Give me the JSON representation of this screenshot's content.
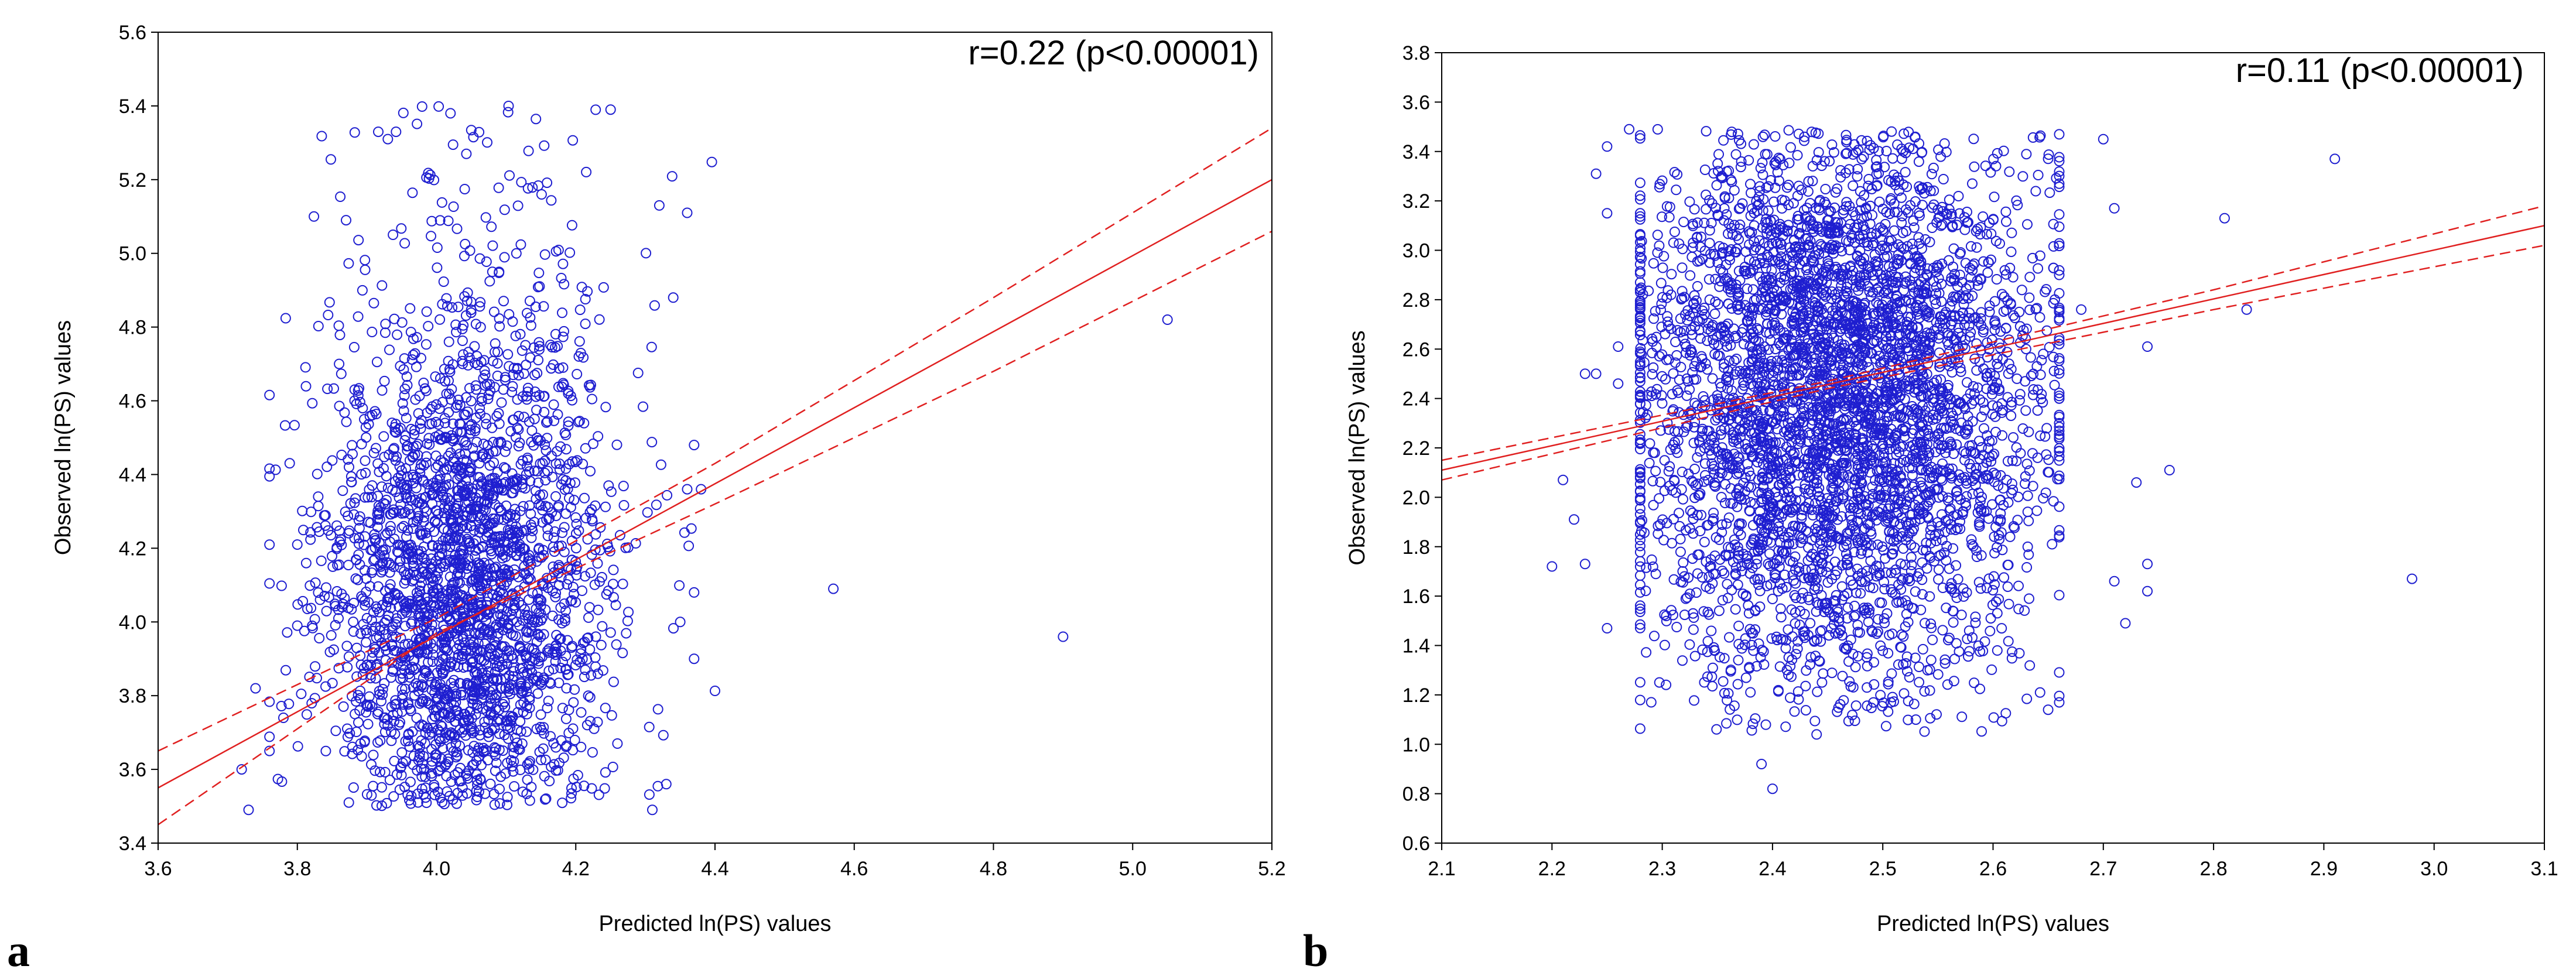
{
  "colors": {
    "points": "#1f1fd0",
    "regression": "#e02020",
    "axis": "#000000"
  },
  "chart_data": [
    {
      "panel": "a",
      "type": "scatter",
      "xlabel": "Predicted ln(PS) values",
      "ylabel": "Observed ln(PS) values",
      "annotation": "r=0.22 (p<0.00001)",
      "xlim": [
        3.6,
        5.2
      ],
      "ylim": [
        3.4,
        5.6
      ],
      "xticks": [
        "3.6",
        "3.8",
        "4.0",
        "4.2",
        "4.4",
        "4.6",
        "4.8",
        "5.0",
        "5.2"
      ],
      "yticks": [
        "3.4",
        "3.6",
        "3.8",
        "4.0",
        "4.2",
        "4.4",
        "4.6",
        "4.8",
        "5.0",
        "5.2",
        "5.4",
        "5.6"
      ],
      "regression": {
        "x": [
          3.6,
          5.2
        ],
        "y": [
          3.55,
          5.2
        ]
      },
      "ci_upper": {
        "x": [
          3.6,
          4.0,
          4.4,
          4.8,
          5.2
        ],
        "y": [
          3.65,
          4.01,
          4.43,
          4.88,
          5.34
        ]
      },
      "ci_lower": {
        "x": [
          3.6,
          4.0,
          4.4,
          4.8,
          5.2
        ],
        "y": [
          3.45,
          3.97,
          4.32,
          4.68,
          5.06
        ]
      },
      "cloud": {
        "n": 2600,
        "x_mean": 4.04,
        "x_sd": 0.1,
        "x_range": [
          3.76,
          4.4
        ],
        "y_mean": 4.05,
        "y_sd": 0.38,
        "y_range": [
          3.5,
          5.4
        ],
        "y_floor": 3.5,
        "seed": 11
      },
      "points": [
        {
          "x": 3.73,
          "y": 3.49
        },
        {
          "x": 3.72,
          "y": 3.6
        },
        {
          "x": 3.76,
          "y": 3.65
        },
        {
          "x": 3.74,
          "y": 3.82
        },
        {
          "x": 3.78,
          "y": 3.74
        },
        {
          "x": 3.8,
          "y": 3.99
        },
        {
          "x": 3.8,
          "y": 4.21
        },
        {
          "x": 3.83,
          "y": 4.34
        },
        {
          "x": 3.86,
          "y": 4.7
        },
        {
          "x": 3.87,
          "y": 5.09
        },
        {
          "x": 3.93,
          "y": 5.31
        },
        {
          "x": 4.02,
          "y": 5.38
        },
        {
          "x": 4.25,
          "y": 5.39
        },
        {
          "x": 4.32,
          "y": 5.13
        },
        {
          "x": 4.36,
          "y": 5.11
        },
        {
          "x": 4.34,
          "y": 4.88
        },
        {
          "x": 4.37,
          "y": 4.48
        },
        {
          "x": 4.36,
          "y": 4.36
        },
        {
          "x": 4.38,
          "y": 4.36
        },
        {
          "x": 4.37,
          "y": 4.08
        },
        {
          "x": 4.35,
          "y": 4.0
        },
        {
          "x": 4.37,
          "y": 3.9
        },
        {
          "x": 4.33,
          "y": 3.56
        },
        {
          "x": 4.31,
          "y": 3.49
        },
        {
          "x": 4.57,
          "y": 4.09
        },
        {
          "x": 4.9,
          "y": 3.96
        },
        {
          "x": 5.05,
          "y": 4.82
        }
      ]
    },
    {
      "panel": "b",
      "type": "scatter",
      "xlabel": "Predicted ln(PS) values",
      "ylabel": "Observed ln(PS) values",
      "annotation": "r=0.11 (p<0.00001)",
      "xlim": [
        2.1,
        3.1
      ],
      "ylim": [
        0.6,
        3.8
      ],
      "xticks": [
        "2.1",
        "2.2",
        "2.3",
        "2.4",
        "2.5",
        "2.6",
        "2.7",
        "2.8",
        "2.9",
        "3.0",
        "3.1"
      ],
      "yticks": [
        "0.6",
        "0.8",
        "1.0",
        "1.2",
        "1.4",
        "1.6",
        "1.8",
        "2.0",
        "2.2",
        "2.4",
        "2.6",
        "2.8",
        "3.0",
        "3.2",
        "3.4",
        "3.6",
        "3.8"
      ],
      "regression": {
        "x": [
          2.1,
          3.1
        ],
        "y": [
          2.11,
          3.1
        ]
      },
      "ci_upper": {
        "x": [
          2.1,
          2.45,
          2.8,
          3.1
        ],
        "y": [
          2.15,
          2.47,
          2.84,
          3.18
        ]
      },
      "ci_lower": {
        "x": [
          2.1,
          2.45,
          2.8,
          3.1
        ],
        "y": [
          2.07,
          2.44,
          2.76,
          3.02
        ]
      },
      "cloud": {
        "n": 4200,
        "x_mean": 2.46,
        "x_sd": 0.09,
        "x_range": [
          2.28,
          2.66
        ],
        "y_mean": 2.4,
        "y_sd": 0.6,
        "y_range": [
          1.05,
          3.49
        ],
        "y_ceiling": 3.49,
        "seed": 23
      },
      "points": [
        {
          "x": 2.2,
          "y": 1.72
        },
        {
          "x": 2.21,
          "y": 2.07
        },
        {
          "x": 2.22,
          "y": 1.91
        },
        {
          "x": 2.23,
          "y": 1.73
        },
        {
          "x": 2.23,
          "y": 2.5
        },
        {
          "x": 2.24,
          "y": 2.5
        },
        {
          "x": 2.25,
          "y": 1.47
        },
        {
          "x": 2.24,
          "y": 3.31
        },
        {
          "x": 2.25,
          "y": 3.42
        },
        {
          "x": 2.27,
          "y": 3.49
        },
        {
          "x": 2.25,
          "y": 3.15
        },
        {
          "x": 2.26,
          "y": 2.61
        },
        {
          "x": 2.26,
          "y": 2.46
        },
        {
          "x": 2.29,
          "y": 1.17
        },
        {
          "x": 2.68,
          "y": 2.76
        },
        {
          "x": 2.7,
          "y": 3.45
        },
        {
          "x": 2.71,
          "y": 3.17
        },
        {
          "x": 2.71,
          "y": 1.66
        },
        {
          "x": 2.72,
          "y": 1.49
        },
        {
          "x": 2.73,
          "y": 2.06
        },
        {
          "x": 2.74,
          "y": 1.62
        },
        {
          "x": 2.74,
          "y": 1.73
        },
        {
          "x": 2.74,
          "y": 2.61
        },
        {
          "x": 2.76,
          "y": 2.11
        },
        {
          "x": 2.81,
          "y": 3.13
        },
        {
          "x": 2.83,
          "y": 2.76
        },
        {
          "x": 2.91,
          "y": 3.37
        },
        {
          "x": 2.98,
          "y": 1.67
        },
        {
          "x": 2.39,
          "y": 0.92
        },
        {
          "x": 2.4,
          "y": 0.82
        },
        {
          "x": 2.65,
          "y": 1.14
        },
        {
          "x": 2.44,
          "y": 1.04
        },
        {
          "x": 2.53,
          "y": 1.1
        }
      ]
    }
  ]
}
